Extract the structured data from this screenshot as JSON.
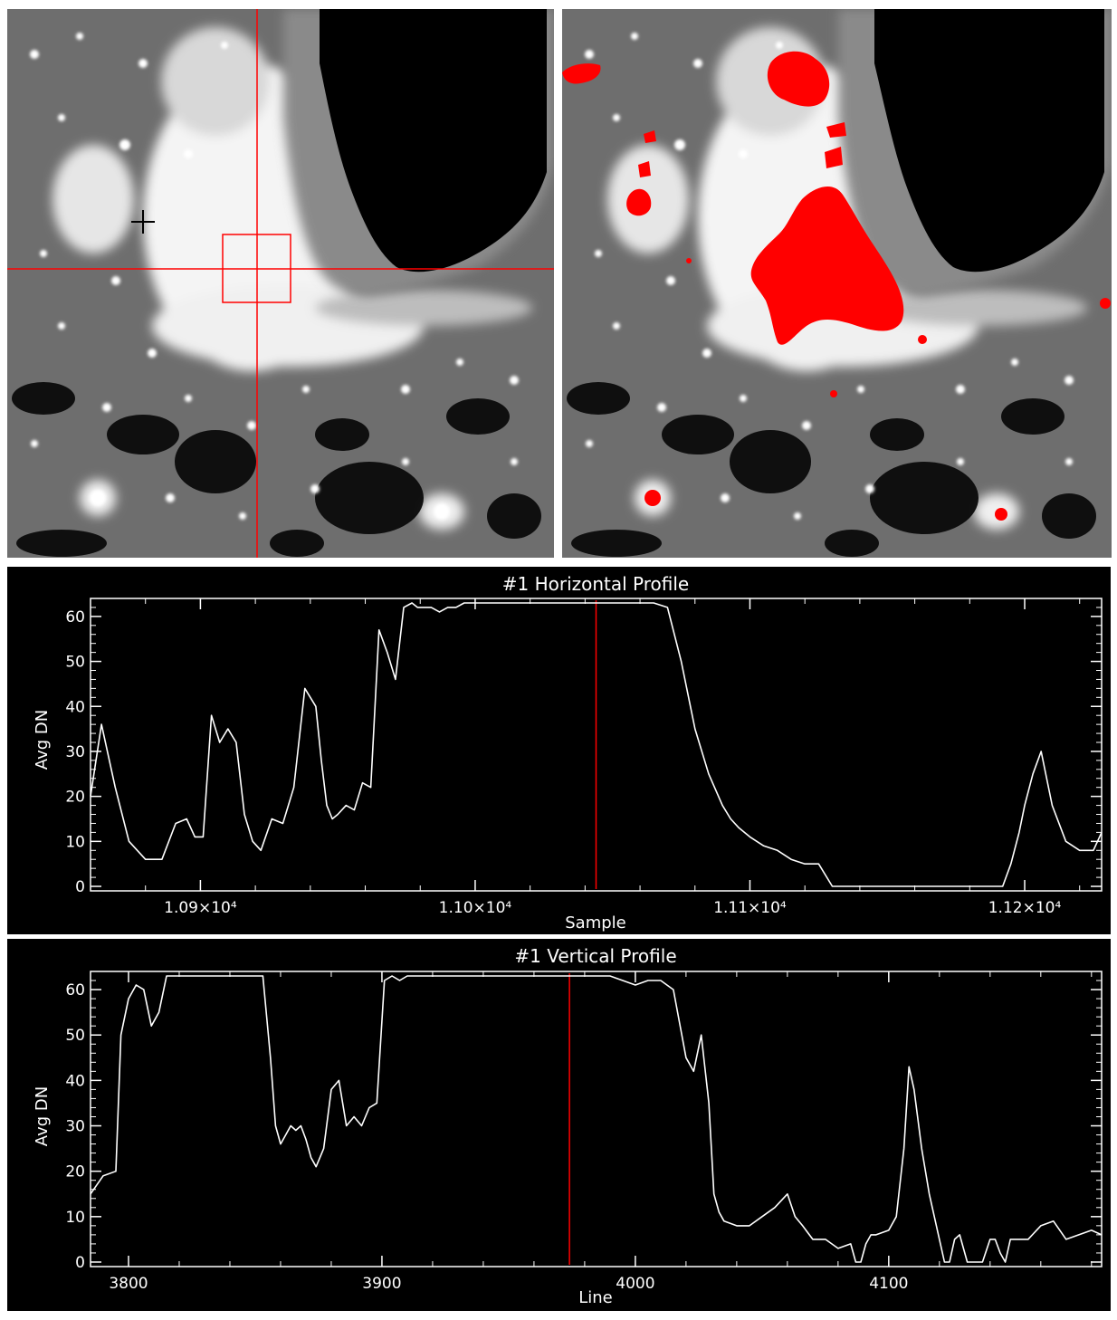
{
  "colors": {
    "background": "#000000",
    "trace": "#ffffff",
    "marker": "#ff0000",
    "threshold_overlay": "#ff0000"
  },
  "images": [
    {
      "name": "night-lights-left",
      "overlay": "crosshair-and-box"
    },
    {
      "name": "night-lights-right",
      "overlay": "threshold-mask"
    }
  ],
  "chart_data": [
    {
      "type": "line",
      "title": "#1 Horizontal Profile",
      "xlabel": "Sample",
      "ylabel": "Avg DN",
      "xlim": [
        10860,
        11228
      ],
      "ylim": [
        -1,
        64
      ],
      "yticks": [
        0,
        10,
        20,
        30,
        40,
        50,
        60
      ],
      "xticks": [
        {
          "value": 10900,
          "label": "1.09×10⁴"
        },
        {
          "value": 11000,
          "label": "1.10×10⁴"
        },
        {
          "value": 11100,
          "label": "1.11×10⁴"
        },
        {
          "value": 11200,
          "label": "1.12×10⁴"
        }
      ],
      "marker_x": 11044,
      "series": [
        {
          "x": [
            10860,
            10864,
            10869,
            10874,
            10880,
            10886,
            10891,
            10895,
            10898,
            10901,
            10904,
            10907,
            10910,
            10913,
            10916,
            10919,
            10922,
            10926,
            10930,
            10934,
            10938,
            10942,
            10944,
            10946,
            10948,
            10950,
            10953,
            10956,
            10959,
            10962,
            10965,
            10968,
            10971,
            10974,
            10977,
            10979,
            10981,
            10984,
            10987,
            10990,
            10993,
            10996,
            10999,
            11001,
            11003,
            11006,
            11010,
            11015,
            11020,
            11025,
            11030,
            11035,
            11040,
            11045,
            11050,
            11055,
            11060,
            11065,
            11070,
            11075,
            11080,
            11085,
            11090,
            11093,
            11096,
            11100,
            11105,
            11110,
            11115,
            11120,
            11125,
            11130,
            11132,
            11134,
            11138,
            11142,
            11146,
            11150,
            11160,
            11170,
            11180,
            11189,
            11192,
            11195,
            11198,
            11200,
            11203,
            11206,
            11210,
            11215,
            11220,
            11225,
            11228
          ],
          "y": [
            20,
            36,
            22,
            10,
            6,
            6,
            14,
            15,
            11,
            11,
            38,
            32,
            35,
            32,
            16,
            10,
            8,
            15,
            14,
            22,
            44,
            40,
            28,
            18,
            15,
            16,
            18,
            17,
            23,
            22,
            57,
            52,
            46,
            62,
            63,
            62,
            62,
            62,
            61,
            62,
            62,
            63,
            63,
            63,
            63,
            63,
            63,
            63,
            63,
            63,
            63,
            63,
            63,
            63,
            63,
            63,
            63,
            63,
            62,
            50,
            35,
            25,
            18,
            15,
            13,
            11,
            9,
            8,
            6,
            5,
            5,
            0,
            0,
            0,
            0,
            0,
            0,
            0,
            0,
            0,
            0,
            0,
            0,
            5,
            12,
            18,
            25,
            30,
            18,
            10,
            8,
            8,
            12
          ]
        }
      ]
    },
    {
      "type": "line",
      "title": "#1 Vertical Profile",
      "xlabel": "Line",
      "ylabel": "Avg DN",
      "xlim": [
        3785,
        4184
      ],
      "ylim": [
        -1,
        64
      ],
      "yticks": [
        0,
        10,
        20,
        30,
        40,
        50,
        60
      ],
      "xticks": [
        {
          "value": 3800,
          "label": "3800"
        },
        {
          "value": 3900,
          "label": "3900"
        },
        {
          "value": 4000,
          "label": "4000"
        },
        {
          "value": 4100,
          "label": "4100"
        }
      ],
      "marker_x": 3974,
      "series": [
        {
          "x": [
            3785,
            3790,
            3795,
            3797,
            3800,
            3803,
            3806,
            3809,
            3812,
            3815,
            3818,
            3821,
            3825,
            3830,
            3835,
            3840,
            3845,
            3850,
            3853,
            3856,
            3858,
            3860,
            3862,
            3864,
            3866,
            3868,
            3870,
            3872,
            3874,
            3877,
            3880,
            3883,
            3886,
            3889,
            3892,
            3895,
            3898,
            3901,
            3904,
            3907,
            3910,
            3912,
            3914,
            3918,
            3922,
            3930,
            3940,
            3950,
            3960,
            3970,
            3980,
            3990,
            4000,
            4005,
            4010,
            4015,
            4020,
            4023,
            4026,
            4029,
            4031,
            4033,
            4035,
            4040,
            4045,
            4050,
            4055,
            4060,
            4063,
            4066,
            4070,
            4075,
            4080,
            4085,
            4087,
            4089,
            4091,
            4093,
            4095,
            4100,
            4103,
            4106,
            4108,
            4110,
            4113,
            4116,
            4120,
            4122,
            4124,
            4126,
            4128,
            4131,
            4134,
            4137,
            4140,
            4142,
            4144,
            4146,
            4148,
            4150,
            4155,
            4160,
            4165,
            4170,
            4175,
            4180,
            4184
          ],
          "y": [
            15,
            19,
            20,
            50,
            58,
            61,
            60,
            52,
            55,
            63,
            63,
            63,
            63,
            63,
            63,
            63,
            63,
            63,
            63,
            45,
            30,
            26,
            28,
            30,
            29,
            30,
            27,
            23,
            21,
            25,
            38,
            40,
            30,
            32,
            30,
            34,
            35,
            62,
            63,
            62,
            63,
            63,
            63,
            63,
            63,
            63,
            63,
            63,
            63,
            63,
            63,
            63,
            61,
            62,
            62,
            60,
            45,
            42,
            50,
            35,
            15,
            11,
            9,
            8,
            8,
            10,
            12,
            15,
            10,
            8,
            5,
            5,
            3,
            4,
            0,
            0,
            4,
            6,
            6,
            7,
            10,
            25,
            43,
            38,
            25,
            15,
            5,
            0,
            0,
            5,
            6,
            0,
            0,
            0,
            5,
            5,
            2,
            0,
            5,
            5,
            5,
            8,
            9,
            5,
            6,
            7,
            6
          ]
        }
      ]
    }
  ]
}
